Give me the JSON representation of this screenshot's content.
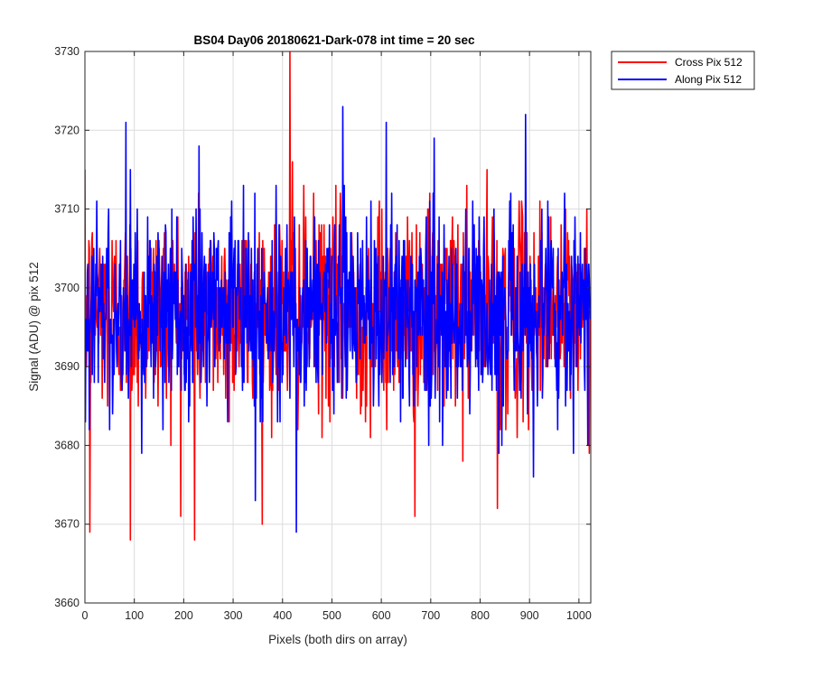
{
  "chart_data": {
    "type": "line",
    "title": "BS04 Day06 20180621-Dark-078 int time = 20 sec",
    "xlabel": "Pixels (both dirs on array)",
    "ylabel": "Signal (ADU) @ pix 512",
    "xlim": [
      0,
      1024
    ],
    "ylim": [
      3660,
      3730
    ],
    "xticks": [
      0,
      100,
      200,
      300,
      400,
      500,
      600,
      700,
      800,
      900,
      1000
    ],
    "yticks": [
      3660,
      3670,
      3680,
      3690,
      3700,
      3710,
      3720,
      3730
    ],
    "grid": true,
    "legend_position": "outside-top-right",
    "series": [
      {
        "name": "Cross Pix 512",
        "color": "#ff0000",
        "points_count": 1024,
        "mean": 3697,
        "std": 6.5,
        "min": 3668,
        "max": 3730,
        "notable_points": [
          [
            10,
            3669
          ],
          [
            92,
            3668
          ],
          [
            222,
            3668
          ],
          [
            415,
            3730
          ],
          [
            420,
            3716
          ],
          [
            668,
            3671
          ],
          [
            835,
            3672
          ]
        ]
      },
      {
        "name": "Along Pix 512",
        "color": "#0000ff",
        "points_count": 1024,
        "mean": 3697,
        "std": 6.5,
        "min": 3669,
        "max": 3723,
        "notable_points": [
          [
            83,
            3721
          ],
          [
            345,
            3673
          ],
          [
            428,
            3669
          ],
          [
            522,
            3723
          ],
          [
            892,
            3722
          ],
          [
            908,
            3676
          ]
        ]
      }
    ]
  }
}
